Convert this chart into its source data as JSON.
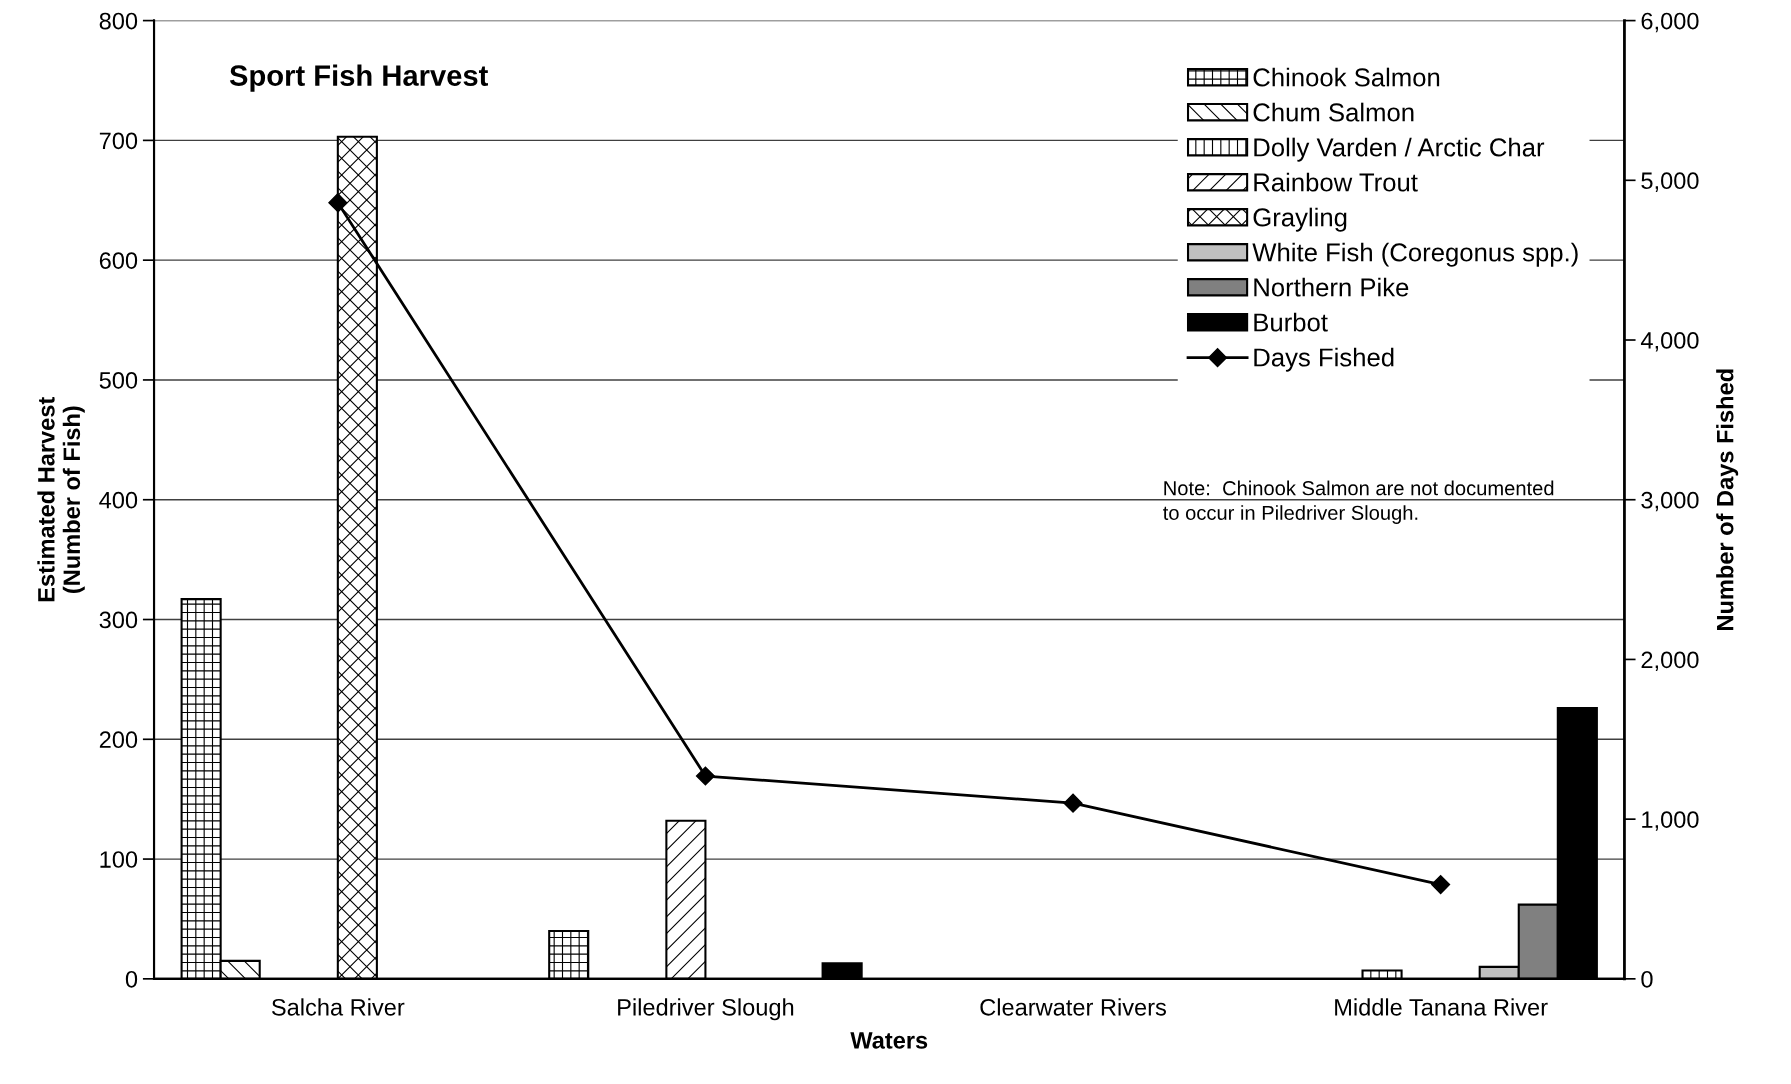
{
  "chart_data": {
    "type": "bar",
    "title": "Sport Fish Harvest",
    "xlabel": "Waters",
    "ylabel": "Estimated Harvest\n(Number of Fish)",
    "y2label": "Number of Days Fished",
    "categories": [
      "Salcha River",
      "Piledriver Slough",
      "Clearwater Rivers",
      "Middle Tanana River"
    ],
    "series": [
      {
        "name": "Chinook Salmon",
        "color": "#000000",
        "values": [
          317,
          40,
          null,
          null
        ]
      },
      {
        "name": "Chum Salmon",
        "color": "#000000",
        "values": [
          15,
          null,
          null,
          null
        ]
      },
      {
        "name": "Dolly Varden / Arctic Char",
        "color": "#000000",
        "values": [
          null,
          null,
          null,
          7
        ]
      },
      {
        "name": "Rainbow Trout",
        "color": "#000000",
        "values": [
          null,
          132,
          null,
          null
        ]
      },
      {
        "name": "Grayling",
        "color": "#000000",
        "values": [
          703,
          null,
          null,
          null
        ]
      },
      {
        "name": "White Fish (Coregonus spp.)",
        "color": "#c0c0c0",
        "values": [
          null,
          null,
          null,
          10
        ]
      },
      {
        "name": "Northern Pike",
        "color": "#808080",
        "values": [
          null,
          null,
          null,
          62
        ]
      },
      {
        "name": "Burbot",
        "color": "#000000",
        "values": [
          null,
          13,
          null,
          226
        ]
      },
      {
        "name": "Days Fished",
        "type": "line",
        "axis": "y2",
        "color": "#000000",
        "marker": "diamond",
        "values": [
          4860,
          1270,
          1100,
          590
        ]
      }
    ],
    "ylim": [
      0,
      800
    ],
    "yticks": [
      0,
      100,
      200,
      300,
      400,
      500,
      600,
      700,
      800
    ],
    "y2lim": [
      0,
      6000
    ],
    "y2ticks": [
      0,
      {
        "value": 1000,
        "label": "1,000"
      },
      {
        "value": 2000,
        "label": "2,000"
      },
      {
        "value": 3000,
        "label": "3,000"
      },
      {
        "value": 4000,
        "label": "4,000"
      },
      {
        "value": 5000,
        "label": "5,000"
      },
      {
        "value": 6000,
        "label": "6,000"
      }
    ],
    "grid": "y",
    "legend": "top right",
    "annotations": [
      "Note:  Chinook Salmon are not documented\nto occur in Piledriver Slough."
    ]
  }
}
